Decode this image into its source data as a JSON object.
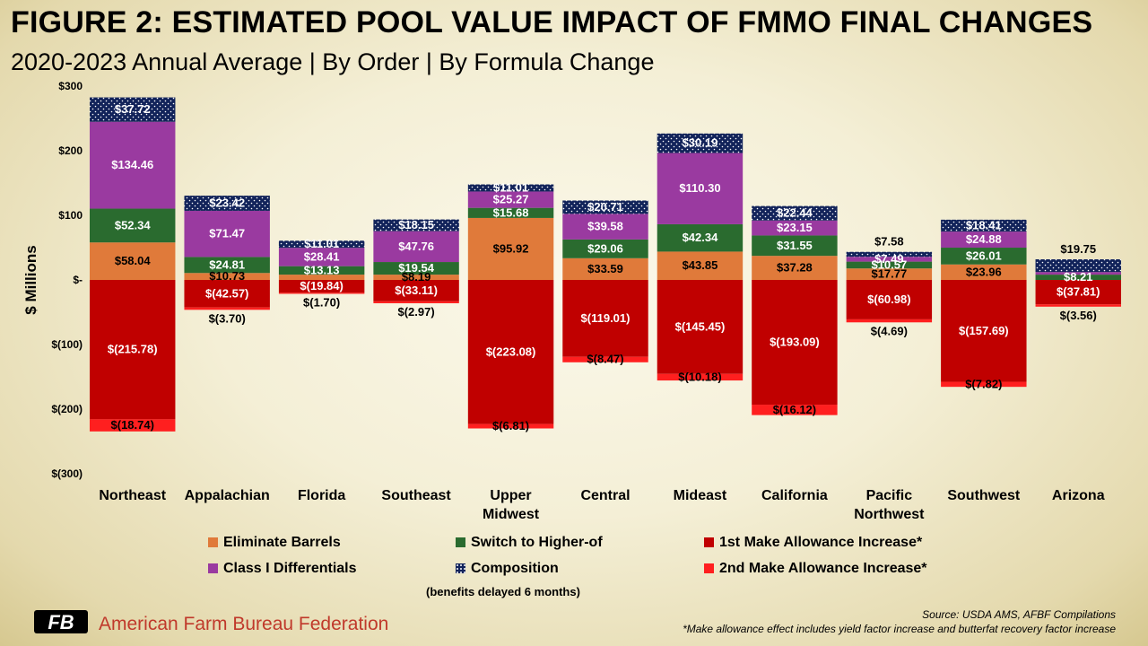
{
  "title": "FIGURE 2: ESTIMATED POOL VALUE IMPACT OF FMMO FINAL CHANGES",
  "subtitle": "2020-2023 Annual Average | By Order | By Formula Change",
  "colors": {
    "eliminate_barrels": "#e07a3a",
    "switch_higher_of": "#2a6b2f",
    "make_allowance_1": "#c00000",
    "class_i": "#9a3aa0",
    "composition": "#12235a",
    "make_allowance_2": "#ff1f1f"
  },
  "chart_data": {
    "type": "bar",
    "stacked": true,
    "ylabel": "$ Millions",
    "ylim": [
      -300,
      300
    ],
    "yticks": [
      300,
      200,
      100,
      0,
      -100,
      -200,
      -300
    ],
    "ytick_labels": [
      "$300",
      "$200",
      "$100",
      "$-",
      "$(100)",
      "$(200)",
      "$(300)"
    ],
    "categories": [
      "Northeast",
      "Appalachian",
      "Florida",
      "Southeast",
      "Upper Midwest",
      "Central",
      "Mideast",
      "California",
      "Pacific Northwest",
      "Southwest",
      "Arizona"
    ],
    "category_labels": [
      [
        "Northeast"
      ],
      [
        "Appalachian"
      ],
      [
        "Florida"
      ],
      [
        "Southeast"
      ],
      [
        "Upper",
        "Midwest"
      ],
      [
        "Central"
      ],
      [
        "Mideast"
      ],
      [
        "California"
      ],
      [
        "Pacific",
        "Northwest"
      ],
      [
        "Southwest"
      ],
      [
        "Arizona"
      ]
    ],
    "series": [
      {
        "name": "Eliminate Barrels",
        "key": "eliminate_barrels",
        "values": [
          58.04,
          10.73,
          8.19,
          8.19,
          95.92,
          33.59,
          43.85,
          37.28,
          17.77,
          23.96,
          0
        ],
        "labels": [
          "$58.04",
          "$10.73",
          "",
          "$8.19",
          "$95.92",
          "$33.59",
          "$43.85",
          "$37.28",
          "$17.77",
          "$23.96",
          ""
        ]
      },
      {
        "name": "Switch to Higher-of",
        "key": "switch_higher_of",
        "values": [
          52.34,
          24.81,
          13.13,
          19.54,
          15.68,
          29.06,
          42.34,
          31.55,
          10.57,
          26.01,
          8.21
        ],
        "labels": [
          "$52.34",
          "$24.81",
          "$13.13",
          "$19.54",
          "$15.68",
          "$29.06",
          "$42.34",
          "$31.55",
          "$10.57",
          "$26.01",
          "$8.21"
        ]
      },
      {
        "name": "Class I Differentials",
        "key": "class_i",
        "values": [
          134.46,
          71.47,
          28.41,
          47.76,
          25.27,
          39.58,
          110.3,
          23.15,
          7.49,
          24.88,
          4.0
        ],
        "labels": [
          "$134.46",
          "$71.47",
          "$28.41",
          "$47.76",
          "$25.27",
          "$39.58",
          "$110.30",
          "$23.15",
          "$7.49",
          "$24.88",
          ""
        ]
      },
      {
        "name": "Composition",
        "key": "composition",
        "values": [
          37.72,
          23.42,
          11.01,
          18.15,
          11.01,
          20.71,
          30.19,
          22.44,
          7.58,
          18.41,
          19.75
        ],
        "labels": [
          "$37.72",
          "$23.42",
          "$11.01",
          "$18.15",
          "$11.01",
          "$20.71",
          "$30.19",
          "$22.44",
          "$7.58",
          "$18.41",
          "$19.75"
        ]
      },
      {
        "name": "1st Make Allowance Increase*",
        "key": "make_allowance_1",
        "values": [
          -215.78,
          -42.57,
          -19.84,
          -33.11,
          -223.08,
          -119.01,
          -145.45,
          -193.09,
          -60.98,
          -157.69,
          -37.81
        ],
        "labels": [
          "$(215.78)",
          "$(42.57)",
          "$(19.84)",
          "$(33.11)",
          "$(223.08)",
          "$(119.01)",
          "$(145.45)",
          "$(193.09)",
          "$(60.98)",
          "$(157.69)",
          "$(37.81)"
        ]
      },
      {
        "name": "2nd Make Allowance Increase*",
        "key": "make_allowance_2",
        "values": [
          -18.74,
          -3.7,
          -1.7,
          -2.97,
          -6.81,
          -8.47,
          -10.18,
          -16.12,
          -4.69,
          -7.82,
          -3.56
        ],
        "labels": [
          "$(18.74)",
          "$(3.70)",
          "$(1.70)",
          "$(2.97)",
          "$(6.81)",
          "$(8.47)",
          "$(10.18)",
          "$(16.12)",
          "$(4.69)",
          "$(7.82)",
          "$(3.56)"
        ]
      }
    ],
    "legend": [
      [
        "Eliminate Barrels",
        "Switch to Higher-of",
        "1st Make Allowance Increase*"
      ],
      [
        "Class I Differentials",
        "Composition",
        "2nd Make Allowance Increase*"
      ]
    ],
    "legend_note": "(benefits delayed 6 months)",
    "grid": false,
    "legend_placement": "bottom"
  },
  "footer": {
    "org_name": "American Farm Bureau Federation",
    "logo_text": "FB",
    "source": "Source: USDA AMS, AFBF Compilations",
    "footnote": "*Make allowance effect includes yield factor increase and butterfat recovery factor increase"
  }
}
